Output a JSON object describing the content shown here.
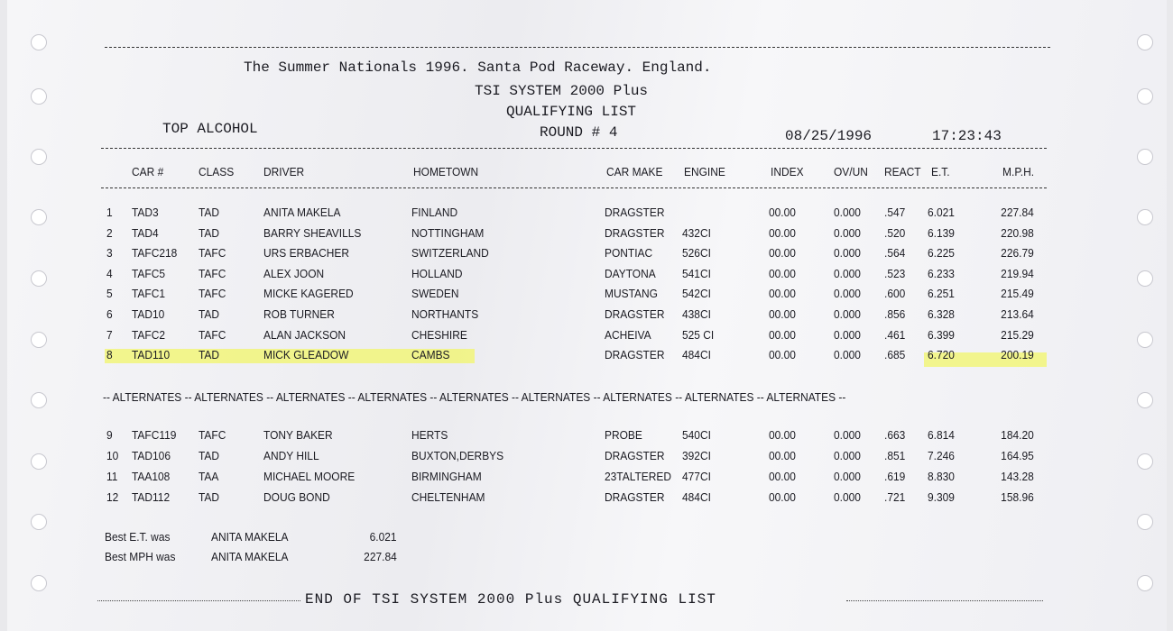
{
  "header": {
    "title": "The Summer Nationals 1996. Santa Pod Raceway. England.",
    "system": "TSI SYSTEM 2000 Plus",
    "list": "QUALIFYING LIST",
    "category": "TOP ALCOHOL",
    "round": "ROUND # 4",
    "date": "08/25/1996",
    "time": "17:23:43"
  },
  "columns": [
    "CAR #",
    "CLASS",
    "DRIVER",
    "HOMETOWN",
    "CAR MAKE",
    "ENGINE",
    "INDEX",
    "OV/UN",
    "REACT",
    "E.T.",
    "M.P.H."
  ],
  "qualifiers": [
    [
      "1",
      "TAD3",
      "TAD",
      "ANITA MAKELA",
      "FINLAND",
      "DRAGSTER",
      "",
      "00.00",
      "0.000",
      ".547",
      "6.021",
      "227.84"
    ],
    [
      "2",
      "TAD4",
      "TAD",
      "BARRY SHEAVILLS",
      "NOTTINGHAM",
      "DRAGSTER",
      "432CI",
      "00.00",
      "0.000",
      ".520",
      "6.139",
      "220.98"
    ],
    [
      "3",
      "TAFC218",
      "TAFC",
      "URS ERBACHER",
      "SWITZERLAND",
      "PONTIAC",
      "526CI",
      "00.00",
      "0.000",
      ".564",
      "6.225",
      "226.79"
    ],
    [
      "4",
      "TAFC5",
      "TAFC",
      "ALEX JOON",
      "HOLLAND",
      "DAYTONA",
      "541CI",
      "00.00",
      "0.000",
      ".523",
      "6.233",
      "219.94"
    ],
    [
      "5",
      "TAFC1",
      "TAFC",
      "MICKE KAGERED",
      "SWEDEN",
      "MUSTANG",
      "542CI",
      "00.00",
      "0.000",
      ".600",
      "6.251",
      "215.49"
    ],
    [
      "6",
      "TAD10",
      "TAD",
      "ROB TURNER",
      "NORTHANTS",
      "DRAGSTER",
      "438CI",
      "00.00",
      "0.000",
      ".856",
      "6.328",
      "213.64"
    ],
    [
      "7",
      "TAFC2",
      "TAFC",
      "ALAN JACKSON",
      "CHESHIRE",
      "ACHEIVA",
      "525 CI",
      "00.00",
      "0.000",
      ".461",
      "6.399",
      "215.29"
    ],
    [
      "8",
      "TAD110",
      "TAD",
      "MICK GLEADOW",
      "CAMBS",
      "DRAGSTER",
      "484CI",
      "00.00",
      "0.000",
      ".685",
      "6.720",
      "200.19"
    ]
  ],
  "alternates_banner": "-- ALTERNATES --  ALTERNATES -- ALTERNATES -- ALTERNATES -- ALTERNATES -- ALTERNATES --  ALTERNATES -- ALTERNATES -- ALTERNATES --",
  "alternates": [
    [
      "9",
      "TAFC119",
      "TAFC",
      "TONY BAKER",
      "HERTS",
      "PROBE",
      "540CI",
      "00.00",
      "0.000",
      ".663",
      "6.814",
      "184.20"
    ],
    [
      "10",
      "TAD106",
      "TAD",
      "ANDY HILL",
      "BUXTON,DERBYS",
      "DRAGSTER",
      "392CI",
      "00.00",
      "0.000",
      ".851",
      "7.246",
      "164.95"
    ],
    [
      "11",
      "TAA108",
      "TAA",
      "MICHAEL MOORE",
      "BIRMINGHAM",
      "23TALTERED",
      "477CI",
      "00.00",
      "0.000",
      ".619",
      "8.830",
      "143.28"
    ],
    [
      "12",
      "TAD112",
      "TAD",
      "DOUG BOND",
      "CHELTENHAM",
      "DRAGSTER",
      "484CI",
      "00.00",
      "0.000",
      ".721",
      "9.309",
      "158.96"
    ]
  ],
  "best": [
    {
      "label": "Best E.T. was",
      "driver": "ANITA MAKELA",
      "value": "6.021"
    },
    {
      "label": "Best MPH was",
      "driver": "ANITA MAKELA",
      "value": "227.84"
    }
  ],
  "footer": "END OF TSI SYSTEM 2000 Plus QUALIFYING LIST",
  "colors": {
    "highlight": "#f2f56a",
    "paper": "#f4f4f6",
    "ink": "#1b1b22"
  }
}
